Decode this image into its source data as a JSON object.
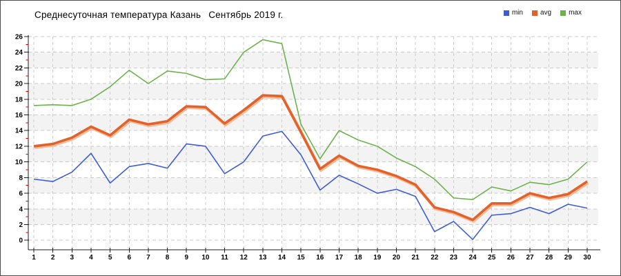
{
  "page": {
    "background": "#ffffff",
    "border_color": "#4d4d4d"
  },
  "chart_data": {
    "type": "line",
    "title": "Среднесуточная температура Казань  Сентябрь 2019 г.",
    "title_parts": [
      "Среднесуточная температура Казань",
      "Сентябрь 2019 г."
    ],
    "xlabel": "",
    "ylabel": "",
    "ylim": [
      0,
      26
    ],
    "ytick_step": 2,
    "minor_ytick_step": 1,
    "minor_ytick_color": "#d40000",
    "grid": true,
    "grid_style": "dashed",
    "background_bands": true,
    "band_color": "#f3f3f3",
    "legend_position": "top-right",
    "legend_labels": [
      "min",
      "avg",
      "max"
    ],
    "categories": [
      1,
      2,
      3,
      4,
      5,
      6,
      7,
      8,
      9,
      10,
      11,
      12,
      13,
      14,
      15,
      16,
      17,
      18,
      19,
      20,
      21,
      22,
      23,
      24,
      25,
      26,
      27,
      28,
      29,
      30
    ],
    "series": [
      {
        "name": "min",
        "color": "#3c5cd6",
        "values": [
          7.8,
          7.5,
          8.7,
          11.1,
          7.3,
          9.4,
          9.8,
          9.2,
          12.3,
          12.0,
          8.5,
          10.0,
          13.3,
          13.9,
          10.9,
          6.4,
          8.3,
          7.2,
          6.0,
          6.5,
          5.6,
          1.1,
          2.4,
          0.1,
          3.2,
          3.4,
          4.2,
          3.4,
          4.6,
          4.1
        ]
      },
      {
        "name": "avg",
        "color": "#e2622b",
        "glow_color": "#f6b58e",
        "values": [
          12.0,
          12.3,
          13.1,
          14.5,
          13.4,
          15.4,
          14.8,
          15.2,
          17.1,
          17.0,
          14.9,
          16.6,
          18.5,
          18.4,
          13.8,
          9.1,
          10.8,
          9.5,
          9.0,
          8.2,
          7.1,
          4.2,
          3.6,
          2.6,
          4.7,
          4.7,
          6.0,
          5.4,
          5.9,
          7.5
        ]
      },
      {
        "name": "max",
        "color": "#6cb24c",
        "values": [
          17.2,
          17.3,
          17.2,
          18.0,
          19.6,
          21.7,
          20.0,
          21.6,
          21.3,
          20.5,
          20.6,
          24.0,
          25.6,
          25.1,
          14.8,
          10.4,
          14.0,
          12.8,
          12.0,
          10.5,
          9.4,
          7.8,
          5.4,
          5.2,
          6.8,
          6.3,
          7.4,
          7.1,
          7.8,
          10.0
        ]
      }
    ]
  }
}
